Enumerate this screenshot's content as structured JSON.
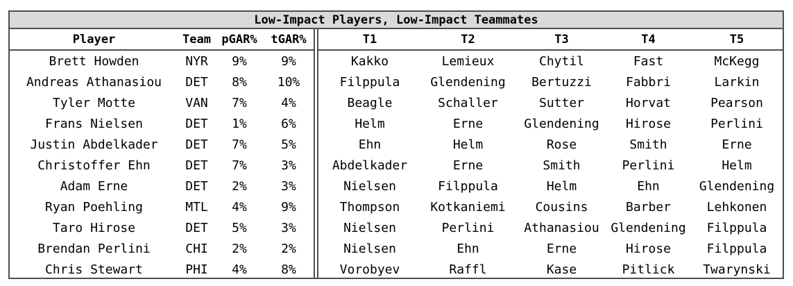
{
  "title": "Low-Impact Players, Low-Impact Teammates",
  "columns": {
    "player": "Player",
    "team": "Team",
    "pgar": "pGAR%",
    "tgar": "tGAR%",
    "t1": "T1",
    "t2": "T2",
    "t3": "T3",
    "t4": "T4",
    "t5": "T5"
  },
  "rows": [
    {
      "player": "Brett Howden",
      "team": "NYR",
      "pgar": "9%",
      "tgar": "9%",
      "t1": "Kakko",
      "t2": "Lemieux",
      "t3": "Chytil",
      "t4": "Fast",
      "t5": "McKegg"
    },
    {
      "player": "Andreas Athanasiou",
      "team": "DET",
      "pgar": "8%",
      "tgar": "10%",
      "t1": "Filppula",
      "t2": "Glendening",
      "t3": "Bertuzzi",
      "t4": "Fabbri",
      "t5": "Larkin"
    },
    {
      "player": "Tyler Motte",
      "team": "VAN",
      "pgar": "7%",
      "tgar": "4%",
      "t1": "Beagle",
      "t2": "Schaller",
      "t3": "Sutter",
      "t4": "Horvat",
      "t5": "Pearson"
    },
    {
      "player": "Frans Nielsen",
      "team": "DET",
      "pgar": "1%",
      "tgar": "6%",
      "t1": "Helm",
      "t2": "Erne",
      "t3": "Glendening",
      "t4": "Hirose",
      "t5": "Perlini"
    },
    {
      "player": "Justin Abdelkader",
      "team": "DET",
      "pgar": "7%",
      "tgar": "5%",
      "t1": "Ehn",
      "t2": "Helm",
      "t3": "Rose",
      "t4": "Smith",
      "t5": "Erne"
    },
    {
      "player": "Christoffer Ehn",
      "team": "DET",
      "pgar": "7%",
      "tgar": "3%",
      "t1": "Abdelkader",
      "t2": "Erne",
      "t3": "Smith",
      "t4": "Perlini",
      "t5": "Helm"
    },
    {
      "player": "Adam Erne",
      "team": "DET",
      "pgar": "2%",
      "tgar": "3%",
      "t1": "Nielsen",
      "t2": "Filppula",
      "t3": "Helm",
      "t4": "Ehn",
      "t5": "Glendening"
    },
    {
      "player": "Ryan Poehling",
      "team": "MTL",
      "pgar": "4%",
      "tgar": "9%",
      "t1": "Thompson",
      "t2": "Kotkaniemi",
      "t3": "Cousins",
      "t4": "Barber",
      "t5": "Lehkonen"
    },
    {
      "player": "Taro Hirose",
      "team": "DET",
      "pgar": "5%",
      "tgar": "3%",
      "t1": "Nielsen",
      "t2": "Perlini",
      "t3": "Athanasiou",
      "t4": "Glendening",
      "t5": "Filppula"
    },
    {
      "player": "Brendan Perlini",
      "team": "CHI",
      "pgar": "2%",
      "tgar": "2%",
      "t1": "Nielsen",
      "t2": "Ehn",
      "t3": "Erne",
      "t4": "Hirose",
      "t5": "Filppula"
    },
    {
      "player": "Chris Stewart",
      "team": "PHI",
      "pgar": "4%",
      "tgar": "8%",
      "t1": "Vorobyev",
      "t2": "Raffl",
      "t3": "Kase",
      "t4": "Pitlick",
      "t5": "Twarynski"
    }
  ]
}
